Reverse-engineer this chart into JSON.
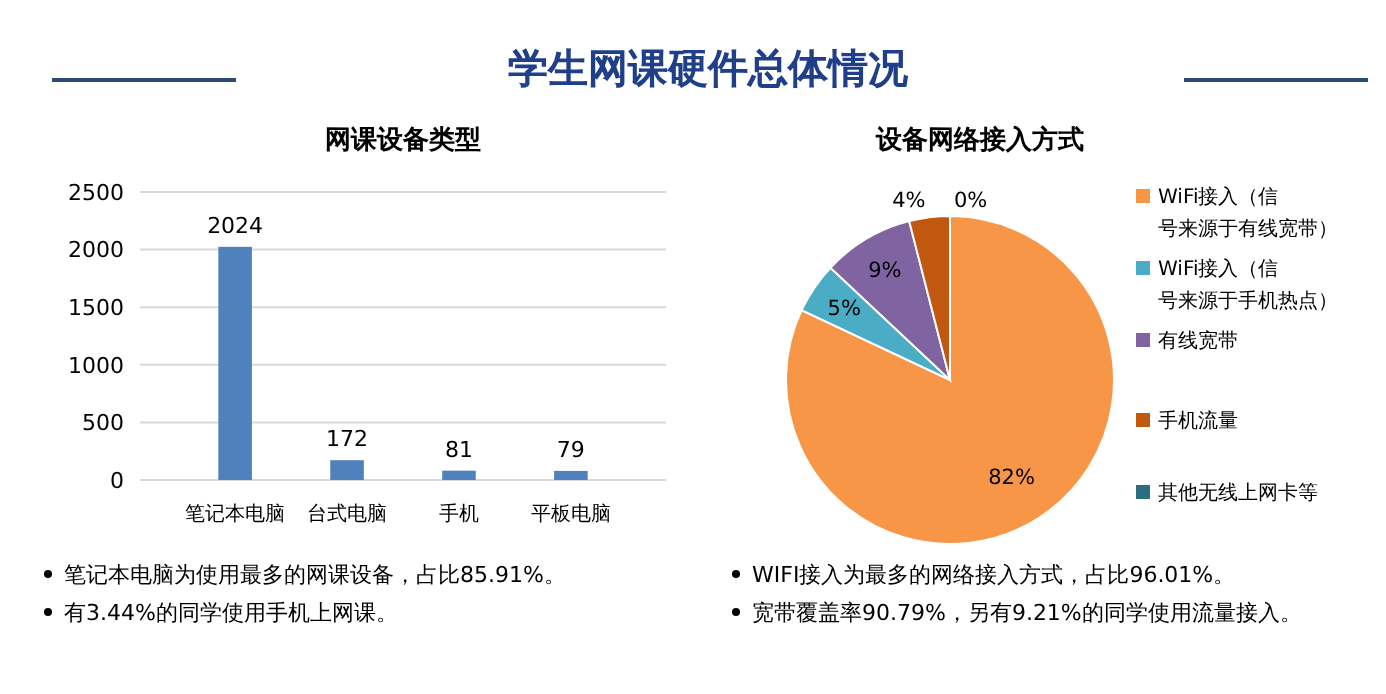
{
  "chart_data": [
    {
      "type": "other",
      "title": "学生网课硬件总体情况"
    },
    {
      "type": "bar",
      "title": "网课设备类型",
      "categories": [
        "笔记本电脑",
        "台式电脑",
        "手机",
        "平板电脑"
      ],
      "values": [
        2024,
        172,
        81,
        79
      ],
      "color": "#4f81bd",
      "ylim": [
        0,
        2500
      ],
      "yticks": [
        0,
        500,
        1000,
        1500,
        2000,
        2500
      ],
      "grid": "y",
      "data_labels": true,
      "annotations": [
        "笔记本电脑为使用最多的网课设备，占比85.91%。",
        "有3.44%的同学使用手机上网课。"
      ]
    },
    {
      "type": "pie",
      "title": "设备网络接入方式",
      "categories": [
        "WiFi接入（信号来源于有线宽带）",
        "WiFi接入（信号来源于手机热点）",
        "有线宽带",
        "手机流量",
        "其他无线上网卡等"
      ],
      "values": [
        82,
        5,
        9,
        4,
        0
      ],
      "colors": [
        "#f79646",
        "#4bacc6",
        "#8064a2",
        "#c0580f",
        "#2c6d7f"
      ],
      "value_labels": [
        "82%",
        "5%",
        "9%",
        "4%",
        "0%"
      ],
      "legend": "right",
      "annotations": [
        "WIFI接入为最多的网络接入方式，占比96.01%。",
        "宽带覆盖率90.79%，另有9.21%的同学使用流量接入。"
      ]
    }
  ]
}
